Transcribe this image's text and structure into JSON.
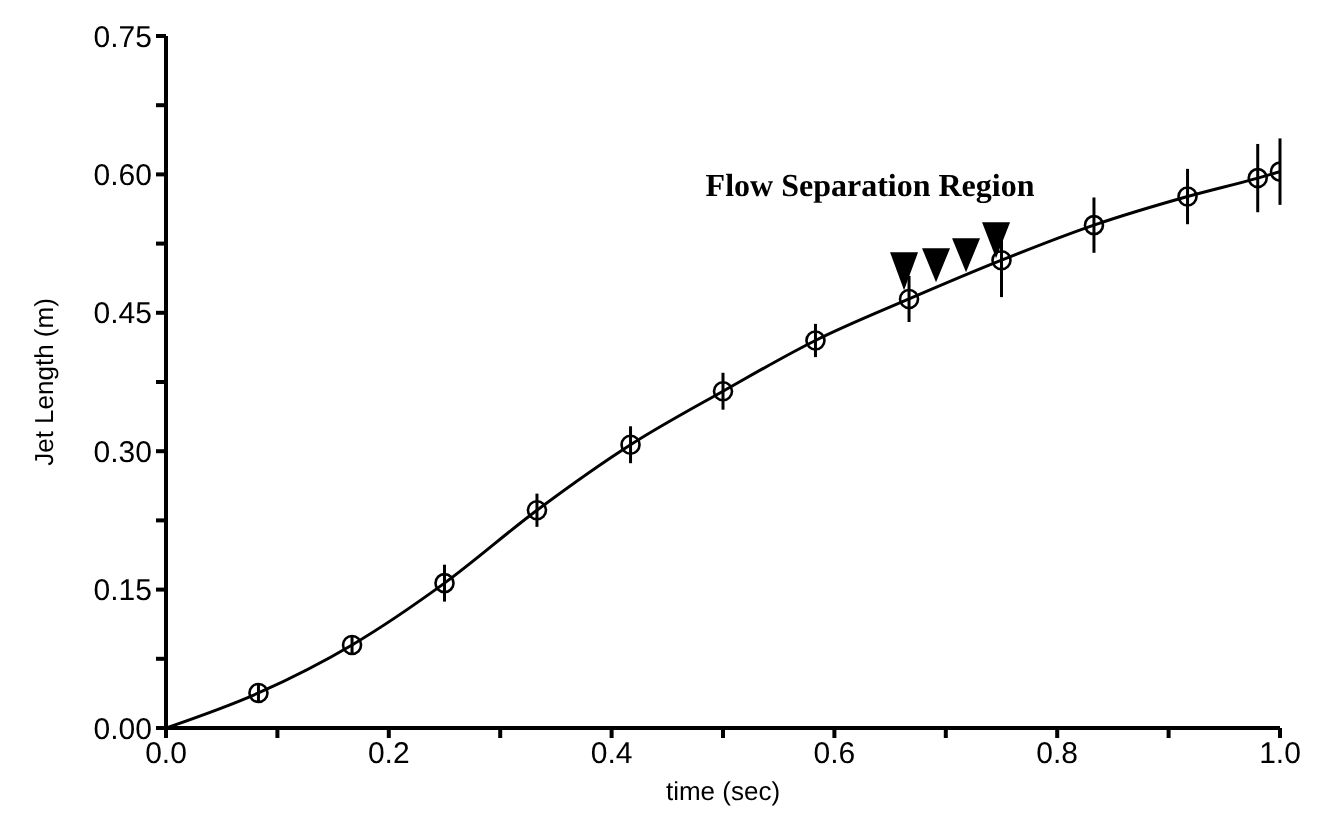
{
  "chart_data": {
    "type": "scatter",
    "xlabel": "time (sec)",
    "ylabel": "Jet Length (m)",
    "xlim": [
      0,
      1.0
    ],
    "ylim": [
      0,
      0.75
    ],
    "xticks": [
      {
        "value": 0,
        "label": "0.0"
      },
      {
        "value": 0.1,
        "label": null
      },
      {
        "value": 0.2,
        "label": "0.2"
      },
      {
        "value": 0.3,
        "label": null
      },
      {
        "value": 0.4,
        "label": "0.4"
      },
      {
        "value": 0.5,
        "label": null
      },
      {
        "value": 0.6,
        "label": "0.6"
      },
      {
        "value": 0.7,
        "label": null
      },
      {
        "value": 0.8,
        "label": "0.8"
      },
      {
        "value": 0.9,
        "label": null
      },
      {
        "value": 1.0,
        "label": "1.0"
      }
    ],
    "yticks": [
      {
        "value": 0,
        "label": "0.00"
      },
      {
        "value": 0.075,
        "label": null
      },
      {
        "value": 0.15,
        "label": "0.15"
      },
      {
        "value": 0.225,
        "label": null
      },
      {
        "value": 0.3,
        "label": "0.30"
      },
      {
        "value": 0.375,
        "label": null
      },
      {
        "value": 0.45,
        "label": "0.45"
      },
      {
        "value": 0.525,
        "label": null
      },
      {
        "value": 0.6,
        "label": "0.60"
      },
      {
        "value": 0.675,
        "label": null
      },
      {
        "value": 0.75,
        "label": "0.75"
      }
    ],
    "grid": false,
    "series": [
      {
        "color": "#000000",
        "marker": "circle",
        "x": [
          0.083,
          0.167,
          0.25,
          0.333,
          0.417,
          0.5,
          0.583,
          0.667,
          0.75,
          0.833,
          0.917,
          0.98,
          1.0
        ],
        "values": [
          0.038,
          0.09,
          0.157,
          0.236,
          0.307,
          0.365,
          0.42,
          0.465,
          0.507,
          0.545,
          0.576,
          0.596,
          0.603
        ],
        "errors": [
          0.01,
          0.01,
          0.02,
          0.018,
          0.02,
          0.02,
          0.018,
          0.025,
          0.04,
          0.03,
          0.03,
          0.037,
          0.036
        ]
      },
      {
        "type": "line",
        "color": "#000000",
        "marker": "none",
        "line_style": "solid",
        "x": [
          0,
          0.083,
          0.167,
          0.25,
          0.333,
          0.417,
          0.5,
          0.583,
          0.667,
          0.75,
          0.833,
          0.917,
          0.98,
          1.0
        ],
        "values": [
          0,
          0.038,
          0.09,
          0.157,
          0.236,
          0.307,
          0.365,
          0.42,
          0.465,
          0.507,
          0.545,
          0.576,
          0.596,
          0.603
        ]
      }
    ],
    "annotations": [
      "Flow Separation Region"
    ]
  }
}
